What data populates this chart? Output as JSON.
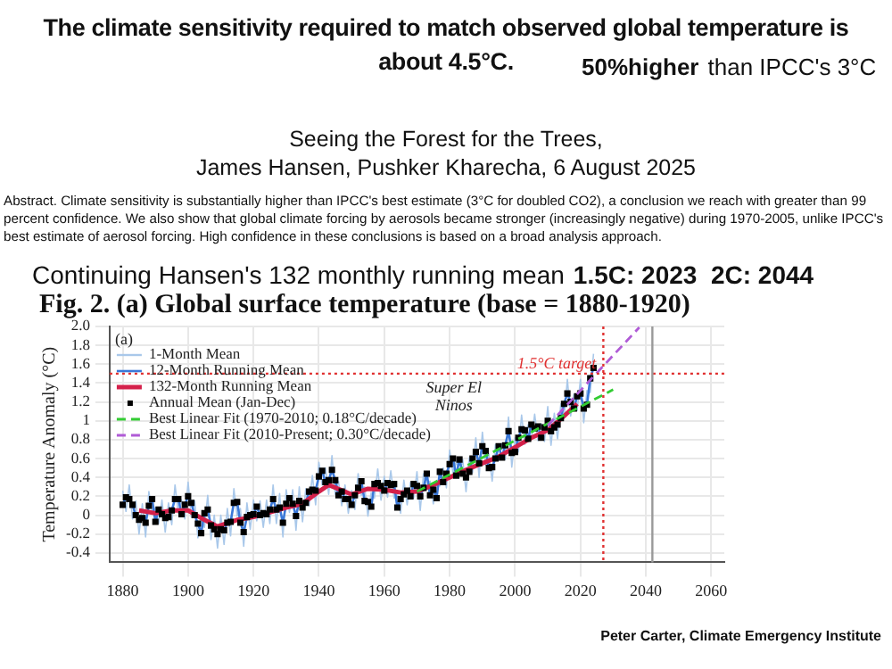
{
  "chart_data": {
    "type": "line",
    "title": "Fig. 2. (a) Global surface temperature (base = 1880-1920)",
    "subtitle": "The climate sensitivity required to match observed global temperature is about 4.5°C.",
    "ylabel": "Temperature Anomaly (°C)",
    "x": [
      1880,
      1881,
      1882,
      1883,
      1884,
      1885,
      1886,
      1887,
      1888,
      1889,
      1890,
      1891,
      1892,
      1893,
      1894,
      1895,
      1896,
      1897,
      1898,
      1899,
      1900,
      1901,
      1902,
      1903,
      1904,
      1905,
      1906,
      1907,
      1908,
      1909,
      1910,
      1911,
      1912,
      1913,
      1914,
      1915,
      1916,
      1917,
      1918,
      1919,
      1920,
      1921,
      1922,
      1923,
      1924,
      1925,
      1926,
      1927,
      1928,
      1929,
      1930,
      1931,
      1932,
      1933,
      1934,
      1935,
      1936,
      1937,
      1938,
      1939,
      1940,
      1941,
      1942,
      1943,
      1944,
      1945,
      1946,
      1947,
      1948,
      1949,
      1950,
      1951,
      1952,
      1953,
      1954,
      1955,
      1956,
      1957,
      1958,
      1959,
      1960,
      1961,
      1962,
      1963,
      1964,
      1965,
      1966,
      1967,
      1968,
      1969,
      1970,
      1971,
      1972,
      1973,
      1974,
      1975,
      1976,
      1977,
      1978,
      1979,
      1980,
      1981,
      1982,
      1983,
      1984,
      1985,
      1986,
      1987,
      1988,
      1989,
      1990,
      1991,
      1992,
      1993,
      1994,
      1995,
      1996,
      1997,
      1998,
      1999,
      2000,
      2001,
      2002,
      2003,
      2004,
      2005,
      2006,
      2007,
      2008,
      2009,
      2010,
      2011,
      2012,
      2013,
      2014,
      2015,
      2016,
      2017,
      2018,
      2019,
      2020,
      2021,
      2022,
      2023,
      2024
    ],
    "series": [
      {
        "name": "1-Month Mean",
        "color": "#a9c8ea",
        "type": "line",
        "values": [
          0.26,
          0.04,
          0.32,
          -0.04,
          0.15,
          -0.2,
          0.12,
          -0.23,
          0.25,
          0.02,
          0.08,
          -0.09,
          0.16,
          -0.18,
          0.13,
          -0.1,
          0.32,
          0.02,
          0.16,
          -0.04,
          0.35,
          -0.02,
          0.15,
          -0.24,
          -0.04,
          -0.13,
          0.21,
          -0.26,
          0.0,
          -0.35,
          0.0,
          -0.31,
          0.07,
          -0.22,
          0.28,
          -0.01,
          0.07,
          -0.33,
          0.13,
          -0.15,
          0.16,
          -0.06,
          0.15,
          -0.13,
          0.16,
          -0.09,
          0.32,
          -0.09,
          0.23,
          -0.23,
          0.27,
          0.03,
          0.27,
          -0.16,
          0.3,
          -0.07,
          0.28,
          0.1,
          0.42,
          0.11,
          0.56,
          0.32,
          0.5,
          0.22,
          0.63,
          0.22,
          0.36,
          0.1,
          0.32,
          0.02,
          0.26,
          0.06,
          0.44,
          0.21,
          0.3,
          -0.01,
          0.24,
          0.18,
          0.49,
          0.16,
          0.41,
          0.19,
          0.47,
          0.18,
          0.23,
          0.02,
          0.37,
          0.11,
          0.35,
          0.18,
          0.46,
          0.05,
          0.44,
          0.29,
          0.36,
          0.12,
          0.33,
          0.31,
          0.5,
          0.29,
          0.69,
          0.45,
          0.57,
          0.44,
          0.59,
          0.25,
          0.61,
          0.45,
          0.82,
          0.4,
          0.88,
          0.53,
          0.65,
          0.36,
          0.75,
          0.58,
          0.76,
          0.59,
          1.04,
          0.51,
          0.82,
          0.67,
          1.06,
          0.75,
          0.96,
          0.81,
          1.07,
          0.79,
          0.97,
          0.78,
          1.15,
          0.74,
          1.08,
          0.81,
          1.18,
          1.03,
          1.44,
          1.05,
          1.28,
          1.11,
          1.44,
          0.98,
          1.32,
          1.3,
          1.71
        ]
      },
      {
        "name": "12-Month Running Mean",
        "color": "#3a78d8",
        "type": "line",
        "values": [
          0.11,
          0.19,
          0.17,
          0.11,
          0.0,
          -0.05,
          -0.03,
          -0.08,
          0.1,
          0.17,
          -0.07,
          0.06,
          0.01,
          -0.03,
          -0.02,
          0.05,
          0.17,
          0.17,
          0.01,
          0.11,
          0.2,
          0.13,
          0.0,
          -0.09,
          -0.19,
          0.02,
          0.06,
          -0.11,
          -0.15,
          -0.2,
          -0.15,
          -0.16,
          -0.08,
          -0.07,
          0.13,
          0.14,
          -0.08,
          -0.18,
          -0.02,
          0.0,
          0.01,
          0.09,
          0.0,
          0.02,
          0.01,
          0.06,
          0.17,
          0.06,
          0.08,
          -0.08,
          0.12,
          0.18,
          0.12,
          -0.01,
          0.15,
          0.08,
          0.13,
          0.25,
          0.27,
          0.26,
          0.41,
          0.47,
          0.35,
          0.37,
          0.48,
          0.37,
          0.21,
          0.25,
          0.17,
          0.17,
          0.11,
          0.21,
          0.29,
          0.36,
          0.15,
          0.14,
          0.09,
          0.33,
          0.34,
          0.31,
          0.26,
          0.34,
          0.32,
          0.33,
          0.08,
          0.17,
          0.22,
          0.26,
          0.2,
          0.33,
          0.31,
          0.2,
          0.29,
          0.44,
          0.21,
          0.27,
          0.18,
          0.46,
          0.35,
          0.44,
          0.54,
          0.6,
          0.42,
          0.59,
          0.44,
          0.4,
          0.46,
          0.6,
          0.67,
          0.55,
          0.73,
          0.68,
          0.5,
          0.51,
          0.6,
          0.73,
          0.61,
          0.74,
          0.89,
          0.66,
          0.67,
          0.82,
          0.91,
          0.9,
          0.81,
          0.96,
          0.92,
          0.94,
          0.82,
          0.93,
          1.0,
          0.89,
          0.93,
          0.96,
          1.03,
          1.18,
          1.29,
          1.2,
          1.13,
          1.26,
          1.29,
          1.13,
          1.17,
          1.45,
          1.56
        ]
      },
      {
        "name": "132-Month Running Mean",
        "color": "#d4204a",
        "type": "line",
        "x": [
          1885,
          1890,
          1895,
          1900,
          1905,
          1909,
          1915,
          1920,
          1925,
          1930,
          1935,
          1940,
          1943,
          1950,
          1955,
          1960,
          1965,
          1970,
          1975,
          1980,
          1985,
          1990,
          1995,
          2000,
          2005,
          2010,
          2015,
          2019
        ],
        "values": [
          0.05,
          0.02,
          0.05,
          0.05,
          -0.05,
          -0.12,
          -0.05,
          -0.02,
          0.03,
          0.08,
          0.12,
          0.25,
          0.32,
          0.22,
          0.28,
          0.27,
          0.24,
          0.25,
          0.32,
          0.4,
          0.48,
          0.55,
          0.62,
          0.72,
          0.82,
          0.9,
          1.05,
          1.18
        ]
      },
      {
        "name": "Annual Mean (Jan-Dec)",
        "color": "#000000",
        "type": "scatter",
        "marker": "square",
        "values": [
          0.11,
          0.19,
          0.17,
          0.11,
          0.0,
          -0.05,
          -0.03,
          -0.08,
          0.1,
          0.17,
          -0.07,
          0.06,
          0.01,
          -0.03,
          -0.02,
          0.05,
          0.17,
          0.17,
          0.01,
          0.11,
          0.2,
          0.13,
          0.0,
          -0.09,
          -0.19,
          0.02,
          0.06,
          -0.11,
          -0.15,
          -0.2,
          -0.15,
          -0.16,
          -0.08,
          -0.07,
          0.13,
          0.14,
          -0.08,
          -0.18,
          -0.02,
          0.0,
          0.01,
          0.09,
          0.0,
          0.02,
          0.01,
          0.06,
          0.17,
          0.06,
          0.08,
          -0.08,
          0.12,
          0.18,
          0.12,
          -0.01,
          0.15,
          0.08,
          0.13,
          0.25,
          0.27,
          0.26,
          0.41,
          0.47,
          0.35,
          0.37,
          0.48,
          0.37,
          0.21,
          0.25,
          0.17,
          0.17,
          0.11,
          0.21,
          0.29,
          0.36,
          0.15,
          0.14,
          0.09,
          0.33,
          0.34,
          0.31,
          0.26,
          0.34,
          0.32,
          0.33,
          0.08,
          0.17,
          0.22,
          0.26,
          0.2,
          0.33,
          0.31,
          0.2,
          0.29,
          0.44,
          0.21,
          0.27,
          0.18,
          0.46,
          0.35,
          0.44,
          0.54,
          0.6,
          0.42,
          0.59,
          0.44,
          0.4,
          0.46,
          0.6,
          0.67,
          0.55,
          0.73,
          0.68,
          0.5,
          0.51,
          0.6,
          0.73,
          0.61,
          0.74,
          0.89,
          0.66,
          0.67,
          0.82,
          0.91,
          0.9,
          0.81,
          0.96,
          0.92,
          0.94,
          0.82,
          0.93,
          1.0,
          0.89,
          0.93,
          0.96,
          1.03,
          1.18,
          1.29,
          1.2,
          1.13,
          1.26,
          1.29,
          1.13,
          1.17,
          1.45,
          1.56
        ]
      },
      {
        "name": "Best Linear Fit (1970-2010; 0.18°C/decade)",
        "color": "#33cc33",
        "type": "line",
        "line_style": "dashed",
        "x": [
          1970,
          2030
        ],
        "values": [
          0.25,
          1.33
        ]
      },
      {
        "name": "Best Linear Fit (2010-Present; 0.30°C/decade)",
        "color": "#b05bd6",
        "type": "line",
        "line_style": "dashed",
        "x": [
          2010,
          2038
        ],
        "values": [
          0.95,
          1.99
        ]
      }
    ],
    "xlim": [
      1876,
      2064
    ],
    "xticks": [
      1880,
      1900,
      1920,
      1940,
      1960,
      1980,
      2000,
      2020,
      2040,
      2060
    ],
    "ylim": [
      -0.5,
      2.0
    ],
    "yticks": [
      -0.4,
      -0.2,
      0,
      0.2,
      0.4,
      0.6,
      0.8,
      1,
      1.2,
      1.4,
      1.6,
      1.8,
      {
        "value": 2.0,
        "label": "2.0"
      }
    ],
    "grid": true,
    "legend": "top left",
    "ref_lines": [
      {
        "axis": "y",
        "value": 1.5,
        "label": "1.5°C target",
        "color": "#e03030",
        "line_style": "dotted"
      },
      {
        "axis": "x",
        "value": 2027,
        "color": "#e03030",
        "line_style": "dotted"
      },
      {
        "axis": "x",
        "value": 2042,
        "color": "#999999",
        "line_style": "solid"
      }
    ],
    "annotations": [
      "50%higher",
      "than IPCC's 3°C",
      "Abstract. Climate sensitivity is substantially higher than IPCC's best estimate (3°C for doubled CO2), a conclusion we reach with greater than 99 percent confidence. We also show that global climate forcing by aerosols became stronger (increasingly negative) during 1970-2005, unlike IPCC's best estimate of aerosol forcing. High confidence in these conclusions is based on a broad analysis approach.",
      "Seeing the Forest for the Trees,\nJames Hansen, Pushker Kharecha, 6 August 2025",
      "Continuing Hansen's 132 monthly running mean",
      "1.5C: 2023  2C: 2044",
      "(a)",
      "Super El Ninos",
      "Peter Carter, Climate Emergency Institute"
    ]
  }
}
